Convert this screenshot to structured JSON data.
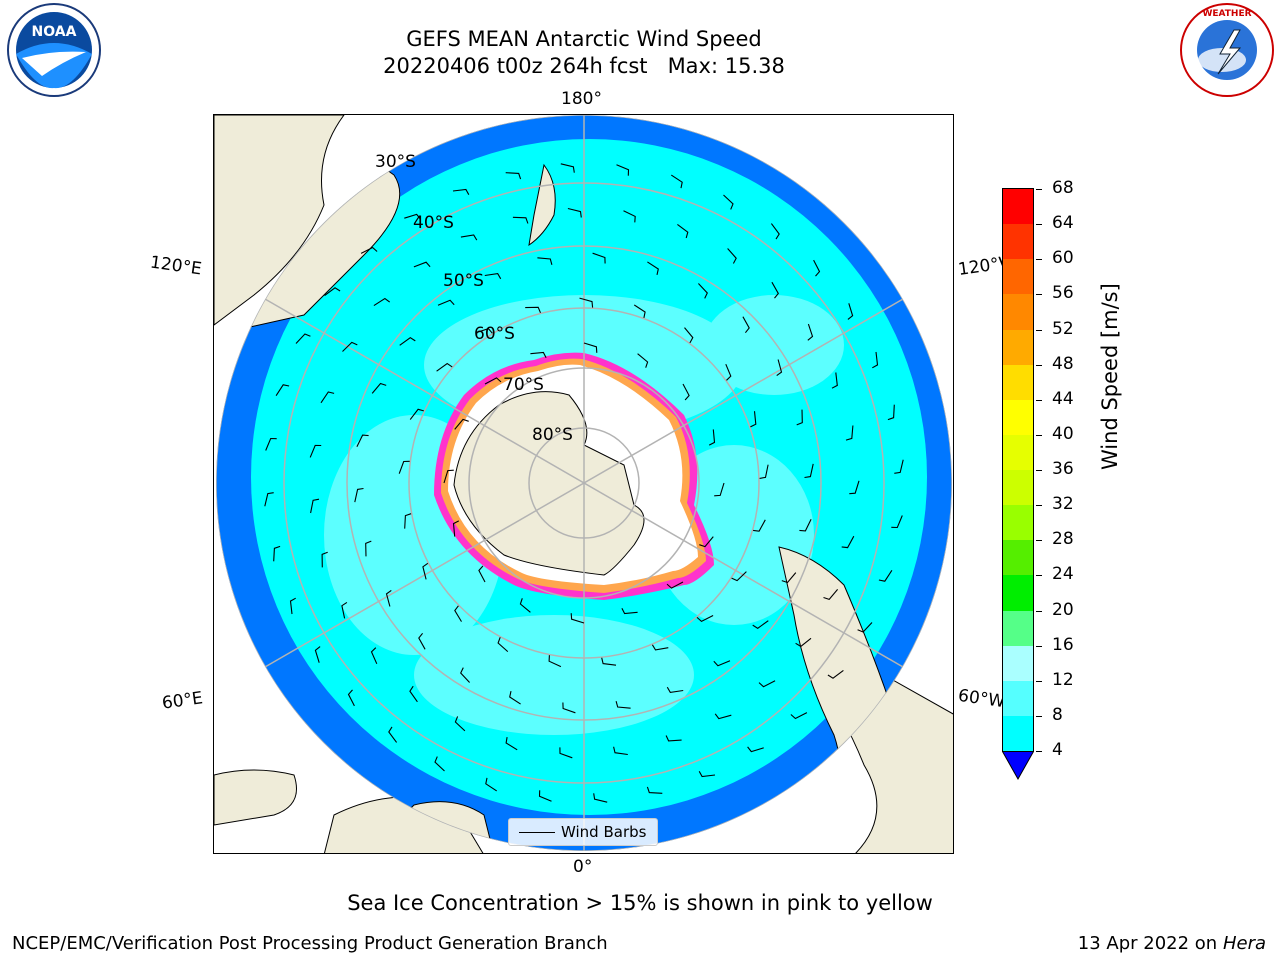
{
  "title": {
    "line1": "GEFS MEAN Antarctic Wind Speed",
    "line2": "20220406 t00z 264h fcst   Max: 15.38"
  },
  "map": {
    "lon_labels": {
      "top": "180°",
      "bottom": "0°",
      "left_upper": "120°E",
      "right_upper": "120°W",
      "left_lower": "60°E",
      "right_lower": "60°W"
    },
    "lat_labels": [
      "30°S",
      "40°S",
      "50°S",
      "60°S",
      "70°S",
      "80°S"
    ],
    "legend": {
      "label": "Wind Barbs"
    },
    "colors": {
      "ocean_low": "#0077ff",
      "ocean_mid": "#00ffff",
      "ocean_high": "#66ffff",
      "land": "#efecd9",
      "ice_edge": "#ff33cc",
      "ice_inner": "#ffa64d",
      "grid": "#b3b3b3"
    }
  },
  "colorbar": {
    "label": "Wind Speed [m/s]",
    "ticks": [
      "68",
      "64",
      "60",
      "56",
      "52",
      "48",
      "44",
      "40",
      "36",
      "32",
      "28",
      "24",
      "20",
      "16",
      "12",
      "8",
      "4"
    ],
    "colors": [
      "#ff0000",
      "#ff3300",
      "#ff6600",
      "#ff8800",
      "#ffaa00",
      "#ffdd00",
      "#ffff00",
      "#e6ff00",
      "#ccff00",
      "#99ff00",
      "#55ee00",
      "#00ee00",
      "#55ff88",
      "#aaffff",
      "#55ffff",
      "#00ffff",
      "#0077ff"
    ],
    "extend_color": "#0000ff"
  },
  "caption": "Sea Ice Concentration > 15% is shown in pink to yellow",
  "footer": {
    "left": "NCEP/EMC/Verification Post Processing Product Generation Branch",
    "right_prefix": "13 Apr 2022 on ",
    "right_italic": "Hera"
  }
}
